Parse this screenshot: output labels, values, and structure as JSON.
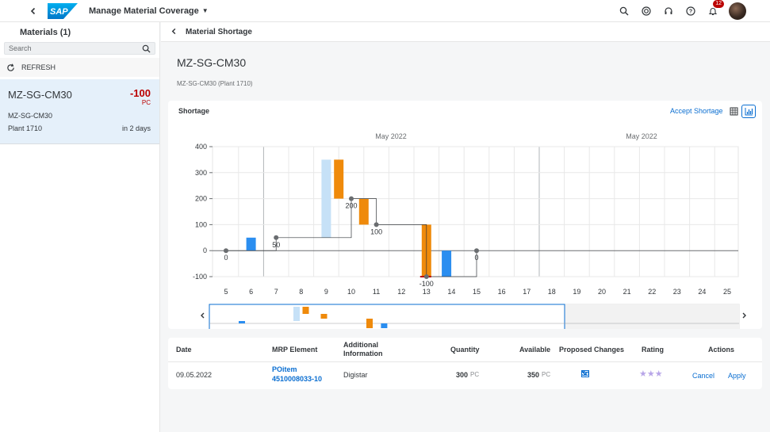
{
  "shell": {
    "app_title": "Manage Material Coverage",
    "notification_count": "12"
  },
  "master": {
    "title": "Materials (1)",
    "search_placeholder": "Search",
    "refresh_label": "REFRESH",
    "items": [
      {
        "title": "MZ-SG-CM30",
        "number": "-100",
        "unit": "PC",
        "subtitle": "MZ-SG-CM30",
        "plant": "Plant 1710",
        "when": "in 2 days"
      }
    ]
  },
  "detail": {
    "nav_title": "Material Shortage",
    "header_title": "MZ-SG-CM30",
    "header_subtitle": "MZ-SG-CM30 (Plant 1710)"
  },
  "chart_card": {
    "title": "Shortage",
    "accept_label": "Accept Shortage",
    "month_labels": [
      "May 2022",
      "May 2022"
    ]
  },
  "chart_data": {
    "type": "bar",
    "title": "Shortage",
    "y_ticks": [
      400,
      300,
      200,
      100,
      0,
      -100
    ],
    "ylim": [
      -100,
      400
    ],
    "categories": [
      "5",
      "6",
      "7",
      "8",
      "9",
      "10",
      "11",
      "12",
      "13",
      "14",
      "15",
      "16",
      "17",
      "18",
      "19",
      "20",
      "21",
      "22",
      "23",
      "24",
      "25"
    ],
    "coverage_line": [
      {
        "x": "5",
        "y": 0,
        "label": "0"
      },
      {
        "x": "7",
        "y": 50,
        "label": "50"
      },
      {
        "x": "10",
        "y": 200,
        "label": "200"
      },
      {
        "x": "11",
        "y": 100,
        "label": "100"
      },
      {
        "x": "13",
        "y": -100,
        "label": "-100"
      },
      {
        "x": "15",
        "y": 0,
        "label": "0"
      }
    ],
    "bars": [
      {
        "x": "6",
        "from": 0,
        "to": 50,
        "color": "#2b8ef0"
      },
      {
        "x": "9",
        "from": 50,
        "to": 350,
        "color": "#c6e1f7"
      },
      {
        "x": "9.5",
        "from": 350,
        "to": 200,
        "color": "#ef8a0b"
      },
      {
        "x": "10.5",
        "from": 200,
        "to": 100,
        "color": "#ef8a0b"
      },
      {
        "x": "13",
        "from": 100,
        "to": -100,
        "color": "#ef8a0b"
      },
      {
        "x": "13.8",
        "from": -100,
        "to": 0,
        "color": "#2b8ef0"
      }
    ],
    "grid": true
  },
  "table": {
    "headers": {
      "date": "Date",
      "mrp": "MRP Element",
      "info_1": "Additional",
      "info_2": "Information",
      "quantity": "Quantity",
      "available": "Available",
      "proposed": "Proposed Changes",
      "rating": "Rating",
      "actions": "Actions"
    },
    "rows": [
      {
        "date": "09.05.2022",
        "mrp_1": "POitem",
        "mrp_2": "4510008033-10",
        "info": "Digistar",
        "quantity": "300",
        "quantity_unit": "PC",
        "available": "350",
        "available_unit": "PC",
        "proposed": "3d",
        "rating_stars": "★★★",
        "cancel": "Cancel",
        "apply": "Apply"
      }
    ]
  }
}
